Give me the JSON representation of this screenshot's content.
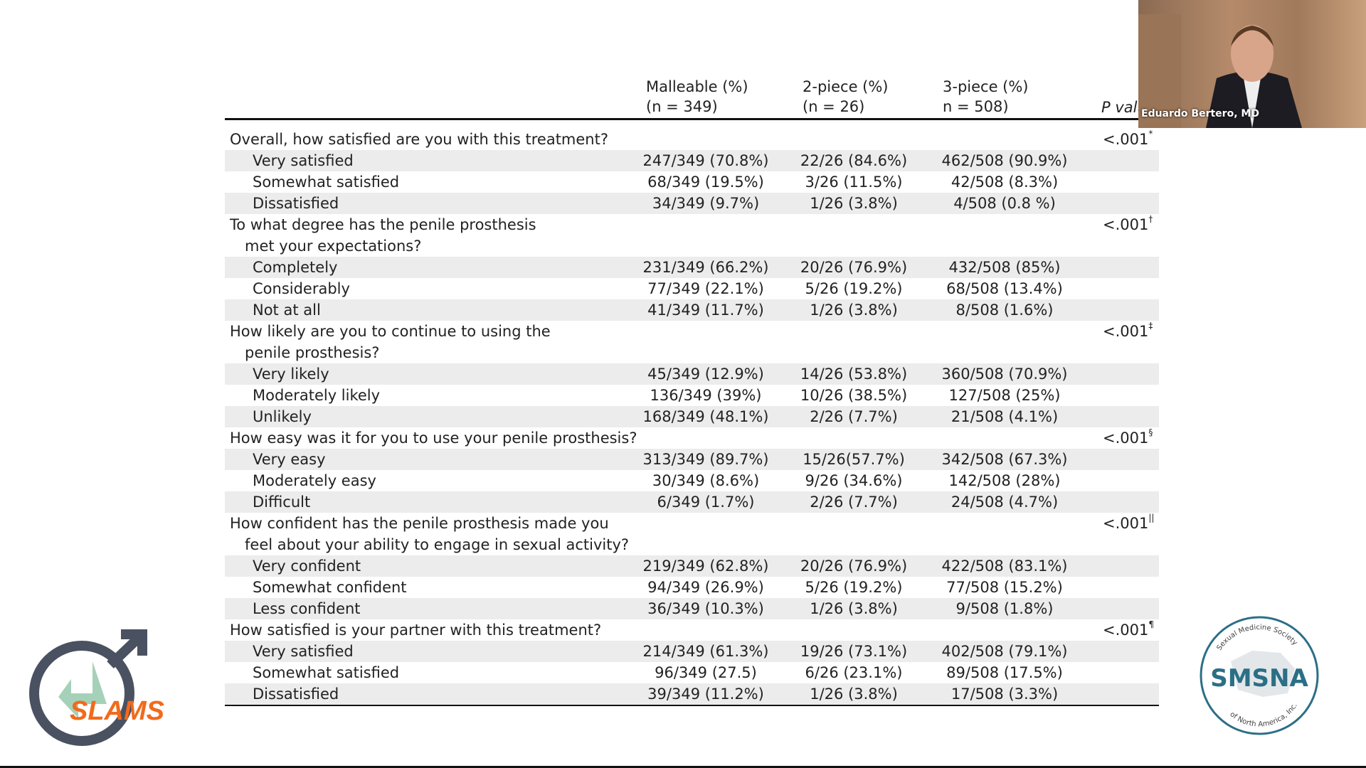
{
  "table": {
    "header": [
      [
        "Malleable (%)",
        "(n = 349)"
      ],
      [
        "2-piece (%)",
        "(n = 26)"
      ],
      [
        "3-piece (%)",
        "n = 508)"
      ],
      [
        "P value"
      ]
    ],
    "sections": [
      {
        "question": [
          "Overall, how satisfied are you with this treatment?"
        ],
        "p": "<.001",
        "note": "*",
        "rows": [
          [
            "Very satisfied",
            "247/349 (70.8%)",
            "22/26 (84.6%)",
            "462/508 (90.9%)"
          ],
          [
            "Somewhat satisfied",
            "68/349 (19.5%)",
            "3/26 (11.5%)",
            "42/508 (8.3%)"
          ],
          [
            "Dissatisfied",
            "34/349 (9.7%)",
            "1/26 (3.8%)",
            "4/508 (0.8 %)"
          ]
        ]
      },
      {
        "question": [
          "To what degree has the penile prosthesis",
          "met your expectations?"
        ],
        "p": "<.001",
        "note": "†",
        "rows": [
          [
            "Completely",
            "231/349 (66.2%)",
            "20/26 (76.9%)",
            "432/508 (85%)"
          ],
          [
            "Considerably",
            "77/349 (22.1%)",
            "5/26 (19.2%)",
            "68/508 (13.4%)"
          ],
          [
            "Not at all",
            "41/349 (11.7%)",
            "1/26 (3.8%)",
            "8/508 (1.6%)"
          ]
        ]
      },
      {
        "question": [
          "How likely are you to continue to using the",
          "penile prosthesis?"
        ],
        "p": "<.001",
        "note": "‡",
        "rows": [
          [
            "Very likely",
            "45/349 (12.9%)",
            "14/26 (53.8%)",
            "360/508 (70.9%)"
          ],
          [
            "Moderately likely",
            "136/349 (39%)",
            "10/26 (38.5%)",
            "127/508 (25%)"
          ],
          [
            "Unlikely",
            "168/349 (48.1%)",
            "2/26 (7.7%)",
            "21/508 (4.1%)"
          ]
        ]
      },
      {
        "question": [
          "How easy was it for you to use your penile prosthesis?"
        ],
        "p": "<.001",
        "note": "§",
        "rows": [
          [
            "Very easy",
            "313/349 (89.7%)",
            "15/26(57.7%)",
            "342/508 (67.3%)"
          ],
          [
            "Moderately easy",
            "30/349 (8.6%)",
            "9/26 (34.6%)",
            "142/508 (28%)"
          ],
          [
            "Difficult",
            "6/349 (1.7%)",
            "2/26 (7.7%)",
            "24/508 (4.7%)"
          ]
        ]
      },
      {
        "question": [
          "How confident has the penile prosthesis made you",
          "feel about your ability to engage in sexual activity?"
        ],
        "p": "<.001",
        "note": "||",
        "rows": [
          [
            "Very confident",
            "219/349 (62.8%)",
            "20/26 (76.9%)",
            "422/508 (83.1%)"
          ],
          [
            "Somewhat confident",
            "94/349 (26.9%)",
            "5/26 (19.2%)",
            "77/508 (15.2%)"
          ],
          [
            "Less confident",
            "36/349 (10.3%)",
            "1/26 (3.8%)",
            "9/508 (1.8%)"
          ]
        ]
      },
      {
        "question": [
          "How satisfied is your partner with this treatment?"
        ],
        "p": "<.001",
        "note": "¶",
        "rows": [
          [
            "Very satisfied",
            "214/349 (61.3%)",
            "19/26 (73.1%)",
            "402/508 (79.1%)"
          ],
          [
            "Somewhat satisfied",
            "96/349 (27.5)",
            "6/26 (23.1%)",
            "89/508 (17.5%)"
          ],
          [
            "Dissatisfied",
            "39/349 (11.2%)",
            "1/26 (3.8%)",
            "17/508 (3.3%)"
          ]
        ]
      }
    ]
  },
  "webcam": {
    "name": "Eduardo Bertero, MD"
  },
  "logos": {
    "left": "SLAMS",
    "right": "SMSNA",
    "right_top": "Sexual Medicine Society",
    "right_bottom": "of North America, Inc."
  }
}
